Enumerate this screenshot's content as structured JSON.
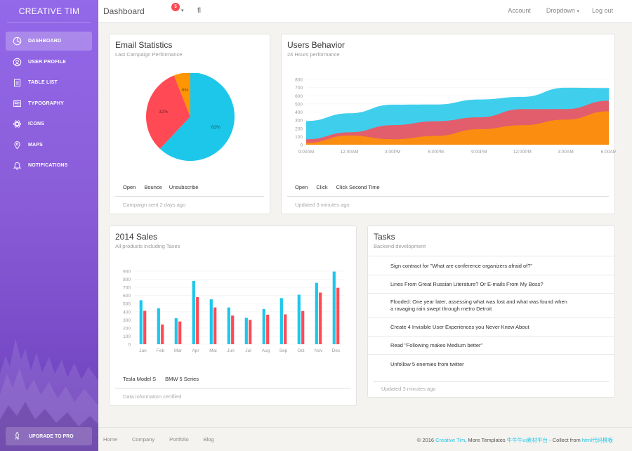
{
  "sidebar": {
    "brand": "CREATIVE TIM",
    "items": [
      {
        "label": "DASHBOARD",
        "icon": "pie-chart-icon",
        "active": true
      },
      {
        "label": "USER PROFILE",
        "icon": "user-icon"
      },
      {
        "label": "TABLE LIST",
        "icon": "clipboard-icon"
      },
      {
        "label": "TYPOGRAPHY",
        "icon": "news-icon"
      },
      {
        "label": "ICONS",
        "icon": "atom-icon"
      },
      {
        "label": "MAPS",
        "icon": "pin-icon"
      },
      {
        "label": "NOTIFICATIONS",
        "icon": "bell-icon"
      }
    ],
    "upgrade": "UPGRADE TO PRO"
  },
  "header": {
    "title": "Dashboard",
    "notification_count": "5",
    "search_icon": "fl",
    "account": "Account",
    "dropdown": "Dropdown",
    "logout": "Log out"
  },
  "email_stats": {
    "title": "Email Statistics",
    "subtitle": "Last Campaign Performance",
    "legend": [
      "Open",
      "Bounce",
      "Unsubscribe"
    ],
    "stats": "Campaign sent 2 days ago",
    "chart_data": {
      "type": "pie",
      "labels": [
        "Open",
        "Bounce",
        "Unsubscribe"
      ],
      "values": [
        62,
        32,
        6
      ],
      "value_labels": [
        "62%",
        "32%",
        "6%"
      ],
      "colors": [
        "#1dc7ea",
        "#ff4a55",
        "#ff9500"
      ]
    }
  },
  "users_behavior": {
    "title": "Users Behavior",
    "subtitle": "24 Hours performance",
    "legend": [
      "Open",
      "Click",
      "Click Second Time"
    ],
    "stats": "Updated 3 minutes ago",
    "chart_data": {
      "type": "area",
      "x": [
        "9:00AM",
        "12:00AM",
        "3:00PM",
        "6:00PM",
        "9:00PM",
        "12:00PM",
        "3:00AM",
        "6:00AM"
      ],
      "yticks": [
        0,
        100,
        200,
        300,
        400,
        500,
        600,
        700,
        800
      ],
      "ylim": [
        0,
        800
      ],
      "series": [
        {
          "name": "Open",
          "color": "#1dc7ea",
          "values": [
            290,
            385,
            490,
            492,
            554,
            586,
            698,
            695
          ]
        },
        {
          "name": "Click",
          "color": "#ff4a55",
          "values": [
            67,
            152,
            240,
            287,
            335,
            435,
            437,
            539
          ]
        },
        {
          "name": "Click Second Time",
          "color": "#ff9500",
          "values": [
            23,
            113,
            67,
            108,
            190,
            239,
            307,
            410
          ]
        }
      ]
    }
  },
  "sales": {
    "title": "2014 Sales",
    "subtitle": "All products including Taxes",
    "legend": [
      "Tesla Model S",
      "BMW 5 Series"
    ],
    "stats": "Data information certified",
    "chart_data": {
      "type": "bar",
      "categories": [
        "Jan",
        "Feb",
        "Mar",
        "Apr",
        "Mai",
        "Jun",
        "Jul",
        "Aug",
        "Sep",
        "Oct",
        "Nov",
        "Dec"
      ],
      "yticks": [
        0,
        100,
        200,
        300,
        400,
        500,
        600,
        700,
        800,
        900
      ],
      "ylim": [
        0,
        900
      ],
      "series": [
        {
          "name": "Tesla Model S",
          "color": "#1dc7ea",
          "values": [
            542,
            443,
            320,
            780,
            553,
            453,
            326,
            434,
            568,
            610,
            756,
            895
          ]
        },
        {
          "name": "BMW 5 Series",
          "color": "#ff4a55",
          "values": [
            412,
            243,
            280,
            580,
            453,
            353,
            300,
            364,
            368,
            410,
            636,
            695
          ]
        }
      ]
    }
  },
  "tasks": {
    "title": "Tasks",
    "subtitle": "Backend development",
    "items": [
      "Sign contract for \"What are conference organizers afraid of?\"",
      "Lines From Great Russian Literature? Or E-mails From My Boss?",
      "Flooded: One year later, assessing what was lost and what was found when a ravaging rain swept through metro Detroit",
      "Create 4 Invisible User Experiences you Never Knew About",
      "Read \"Following makes Medium better\"",
      "Unfollow 5 enemies from twitter"
    ],
    "stats": "Updated 3 minutes ago"
  },
  "footer": {
    "links": [
      "Home",
      "Company",
      "Portfolio",
      "Blog"
    ],
    "copy_prefix": "© 2016 ",
    "copy_brand": "Creative Tim",
    "copy_mid": ", More Templates ",
    "copy_link1": "牛牛牛ui素材平台",
    "copy_sep": " - Collect from ",
    "copy_link2": "html代码模板"
  }
}
